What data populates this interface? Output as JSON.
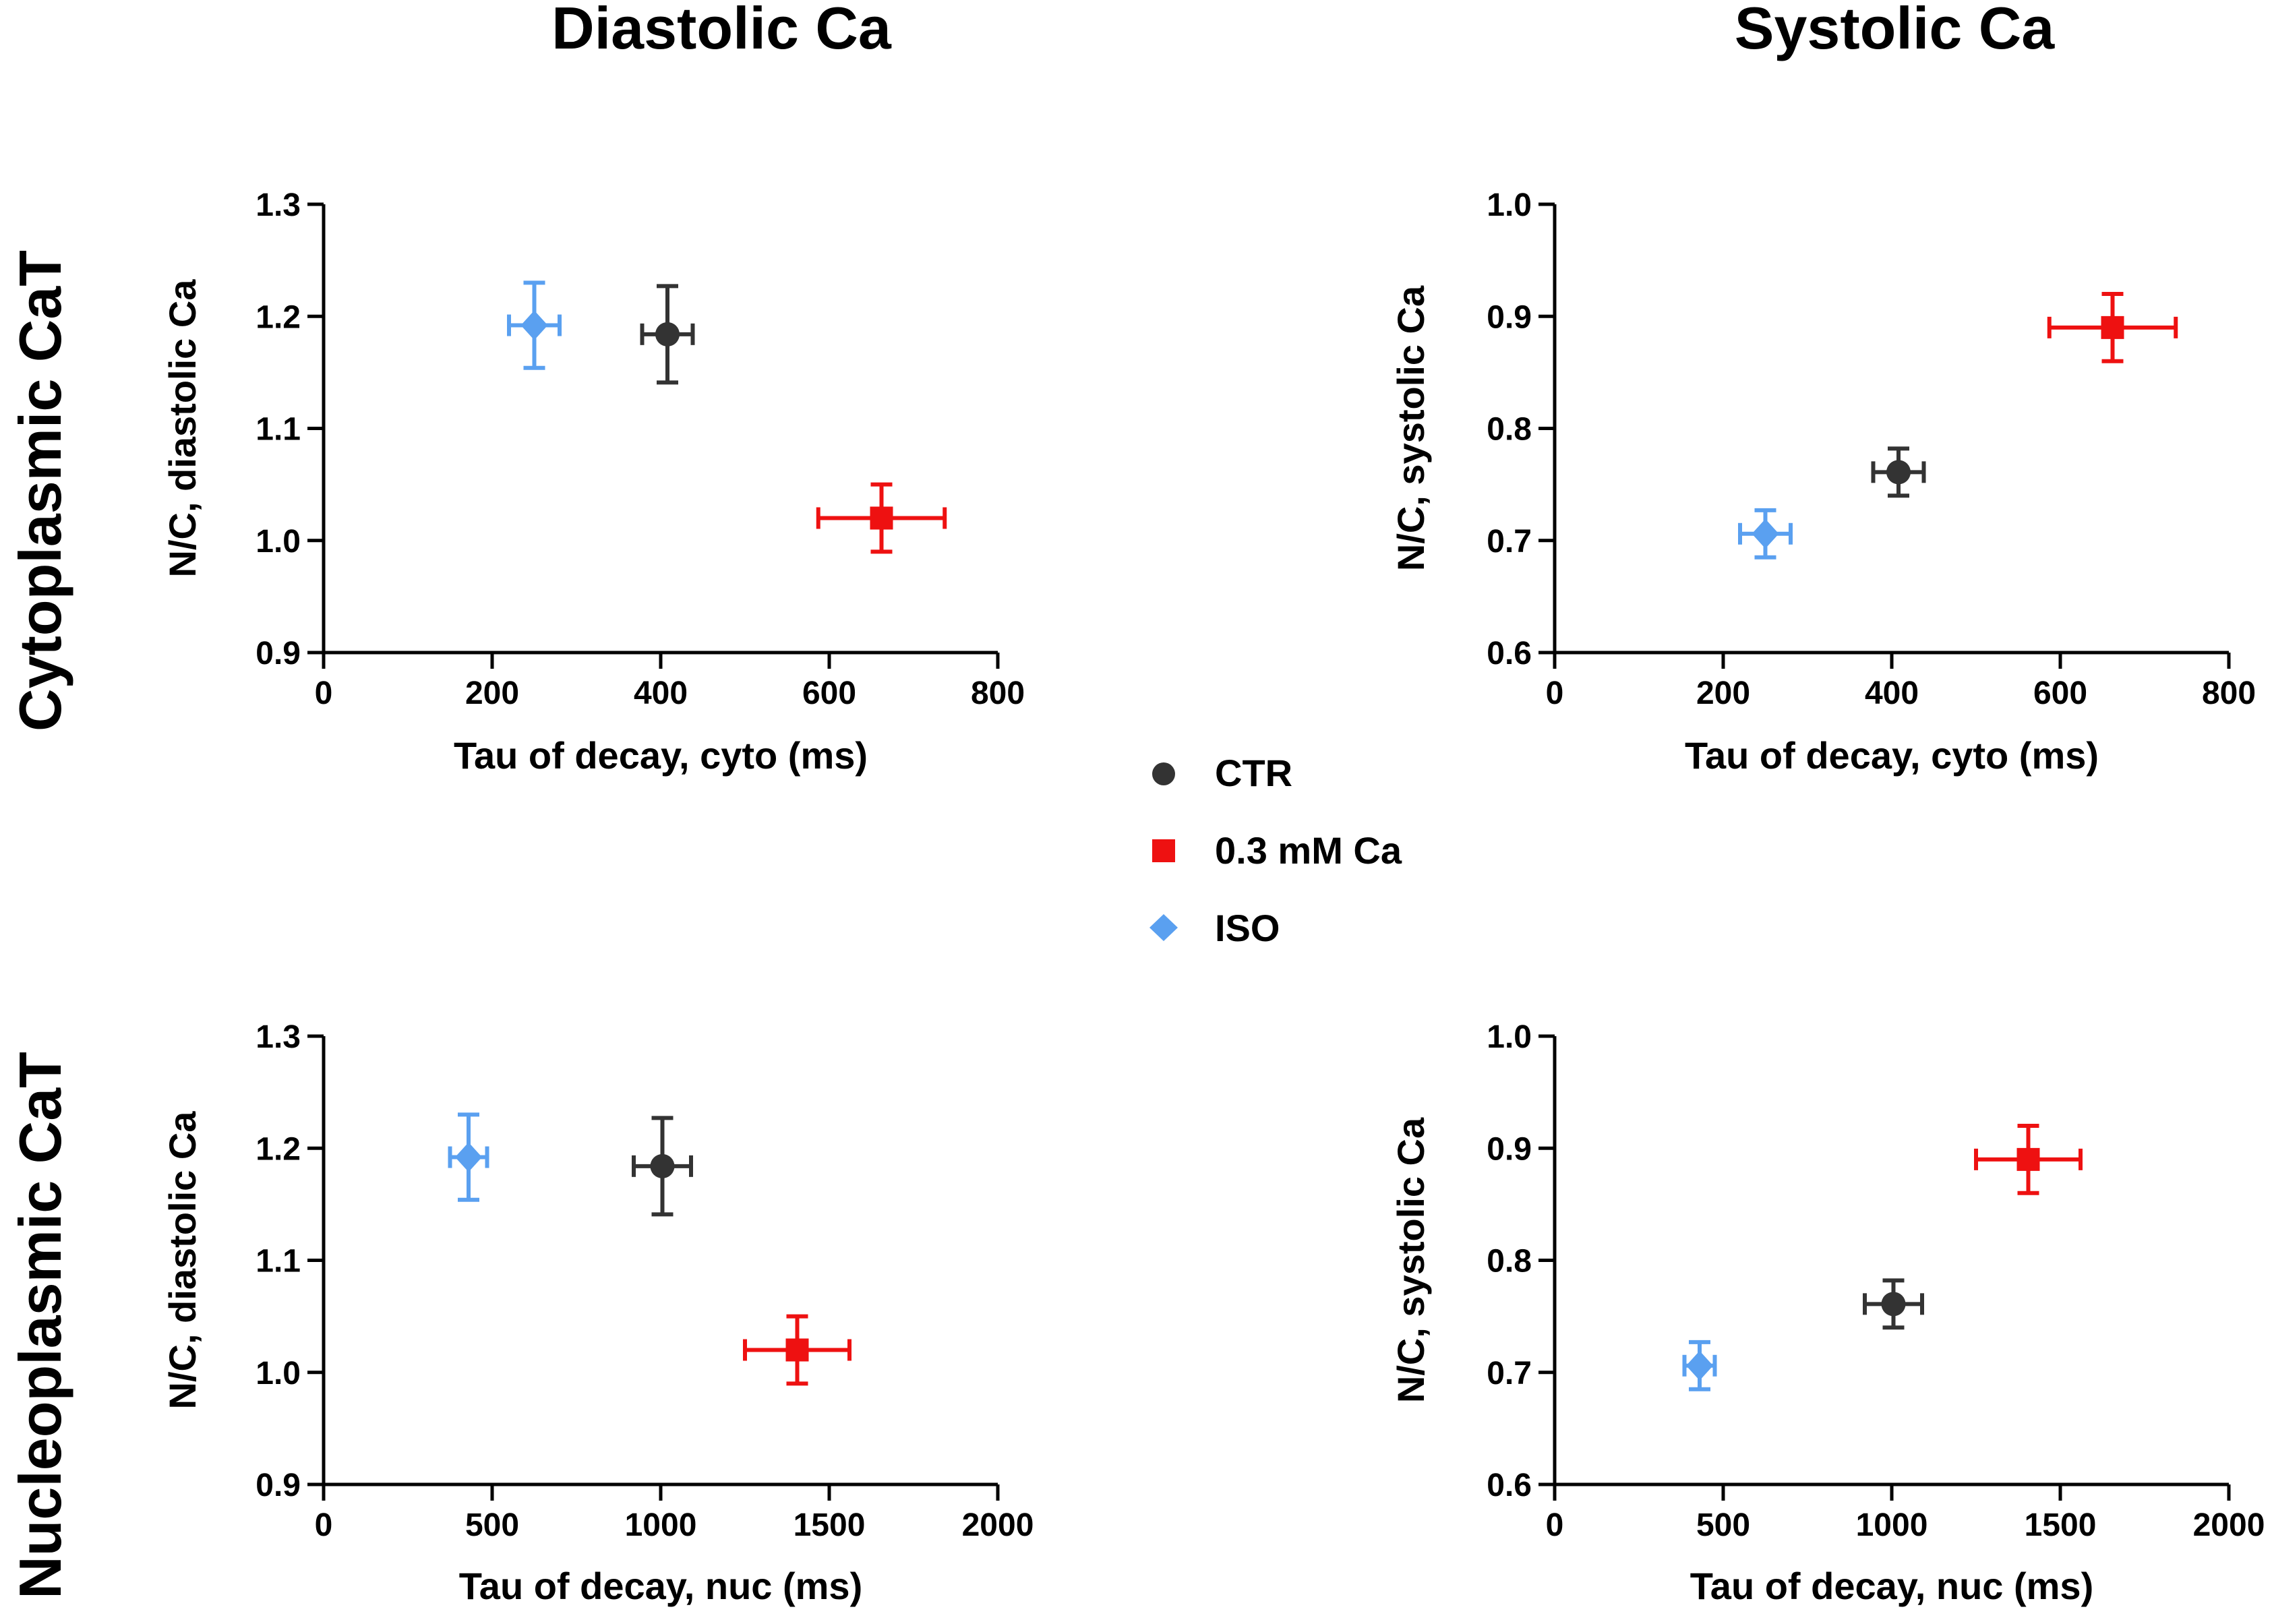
{
  "figure": {
    "column_titles": [
      "Diastolic Ca",
      "Systolic Ca"
    ],
    "row_titles": [
      "Cytoplasmic CaT",
      "Nucleoplasmic CaT"
    ],
    "colors": {
      "CTR": "#333333",
      "0.3 mM Ca": "#ee1111",
      "ISO": "#5aa0f0"
    }
  },
  "legend": {
    "entries": [
      {
        "label": "CTR",
        "marker": "circle",
        "color": "#333333"
      },
      {
        "label": "0.3 mM Ca",
        "marker": "square",
        "color": "#ee1111"
      },
      {
        "label": "ISO",
        "marker": "diamond",
        "color": "#5aa0f0"
      }
    ]
  },
  "chart_data": [
    {
      "type": "scatter",
      "xlabel": "Tau of decay, cyto (ms)",
      "ylabel": "N/C, diastolic Ca",
      "xlim": [
        0,
        800
      ],
      "ylim": [
        0.9,
        1.3
      ],
      "xticks": [
        0,
        200,
        400,
        600,
        800
      ],
      "yticks": [
        0.9,
        1.0,
        1.1,
        1.2,
        1.3
      ],
      "xtick_labels": [
        "0",
        "200",
        "400",
        "600",
        "800"
      ],
      "ytick_labels": [
        "0.9",
        "1.0",
        "1.1",
        "1.2",
        "1.3"
      ],
      "series": [
        {
          "name": "CTR",
          "marker": "circle",
          "color": "#333333",
          "x": 408,
          "y": 1.184,
          "xerr": 30,
          "yerr": 0.043
        },
        {
          "name": "0.3 mM Ca",
          "marker": "square",
          "color": "#ee1111",
          "x": 662,
          "y": 1.02,
          "xerr": 75,
          "yerr": 0.03
        },
        {
          "name": "ISO",
          "marker": "diamond",
          "color": "#5aa0f0",
          "x": 250,
          "y": 1.192,
          "xerr": 30,
          "yerr": 0.038
        }
      ]
    },
    {
      "type": "scatter",
      "xlabel": "Tau of decay, cyto (ms)",
      "ylabel": "N/C, systolic Ca",
      "xlim": [
        0,
        800
      ],
      "ylim": [
        0.6,
        1.0
      ],
      "xticks": [
        0,
        200,
        400,
        600,
        800
      ],
      "yticks": [
        0.6,
        0.7,
        0.8,
        0.9,
        1.0
      ],
      "xtick_labels": [
        "0",
        "200",
        "400",
        "600",
        "800"
      ],
      "ytick_labels": [
        "0.6",
        "0.7",
        "0.8",
        "0.9",
        "1.0"
      ],
      "series": [
        {
          "name": "CTR",
          "marker": "circle",
          "color": "#333333",
          "x": 408,
          "y": 0.761,
          "xerr": 30,
          "yerr": 0.021
        },
        {
          "name": "0.3 mM Ca",
          "marker": "square",
          "color": "#ee1111",
          "x": 662,
          "y": 0.89,
          "xerr": 75,
          "yerr": 0.03
        },
        {
          "name": "ISO",
          "marker": "diamond",
          "color": "#5aa0f0",
          "x": 250,
          "y": 0.706,
          "xerr": 30,
          "yerr": 0.021
        }
      ]
    },
    {
      "type": "scatter",
      "xlabel": "Tau of decay, nuc (ms)",
      "ylabel": "N/C, diastolic Ca",
      "xlim": [
        0,
        2000
      ],
      "ylim": [
        0.9,
        1.3
      ],
      "xticks": [
        0,
        500,
        1000,
        1500,
        2000
      ],
      "yticks": [
        0.9,
        1.0,
        1.1,
        1.2,
        1.3
      ],
      "xtick_labels": [
        "0",
        "500",
        "1000",
        "1500",
        "2000"
      ],
      "ytick_labels": [
        "0.9",
        "1.0",
        "1.1",
        "1.2",
        "1.3"
      ],
      "series": [
        {
          "name": "CTR",
          "marker": "circle",
          "color": "#333333",
          "x": 1005,
          "y": 1.184,
          "xerr": 85,
          "yerr": 0.043
        },
        {
          "name": "0.3 mM Ca",
          "marker": "square",
          "color": "#ee1111",
          "x": 1405,
          "y": 1.02,
          "xerr": 155,
          "yerr": 0.03
        },
        {
          "name": "ISO",
          "marker": "diamond",
          "color": "#5aa0f0",
          "x": 430,
          "y": 1.192,
          "xerr": 55,
          "yerr": 0.038
        }
      ]
    },
    {
      "type": "scatter",
      "xlabel": "Tau of decay, nuc (ms)",
      "ylabel": "N/C, systolic Ca",
      "xlim": [
        0,
        2000
      ],
      "ylim": [
        0.6,
        1.0
      ],
      "xticks": [
        0,
        500,
        1000,
        1500,
        2000
      ],
      "yticks": [
        0.6,
        0.7,
        0.8,
        0.9,
        1.0
      ],
      "xtick_labels": [
        "0",
        "500",
        "1000",
        "1500",
        "2000"
      ],
      "ytick_labels": [
        "0.6",
        "0.7",
        "0.8",
        "0.9",
        "1.0"
      ],
      "series": [
        {
          "name": "CTR",
          "marker": "circle",
          "color": "#333333",
          "x": 1005,
          "y": 0.761,
          "xerr": 85,
          "yerr": 0.021
        },
        {
          "name": "0.3 mM Ca",
          "marker": "square",
          "color": "#ee1111",
          "x": 1405,
          "y": 0.89,
          "xerr": 155,
          "yerr": 0.03
        },
        {
          "name": "ISO",
          "marker": "diamond",
          "color": "#5aa0f0",
          "x": 430,
          "y": 0.706,
          "xerr": 45,
          "yerr": 0.021
        }
      ]
    }
  ]
}
